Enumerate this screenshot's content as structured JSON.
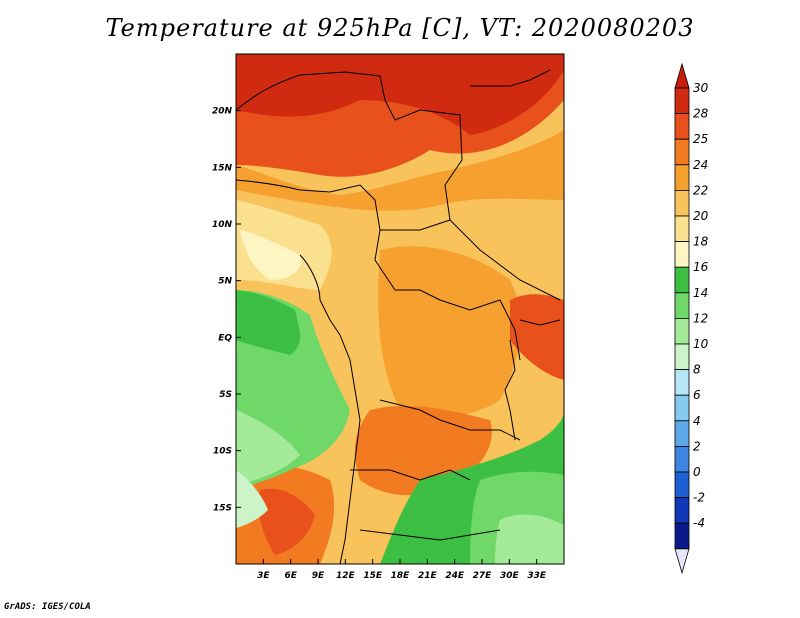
{
  "title": "Temperature at 925hPa [C], VT: 2020080203",
  "footer": "GrADS: IGES/COLA",
  "map": {
    "lon_range": [
      0,
      36
    ],
    "lat_range": [
      -20,
      25
    ],
    "x_ticks": [
      "3E",
      "6E",
      "9E",
      "12E",
      "15E",
      "18E",
      "21E",
      "24E",
      "27E",
      "30E",
      "33E"
    ],
    "x_tick_values": [
      3,
      6,
      9,
      12,
      15,
      18,
      21,
      24,
      27,
      30,
      33
    ],
    "y_ticks": [
      "20N",
      "15N",
      "10N",
      "5N",
      "EQ",
      "5S",
      "10S",
      "15S"
    ],
    "y_tick_values": [
      20,
      15,
      10,
      5,
      0,
      -5,
      -10,
      -15
    ]
  },
  "colorbar": {
    "labels": [
      "30",
      "28",
      "25",
      "24",
      "22",
      "20",
      "18",
      "16",
      "14",
      "12",
      "10",
      "8",
      "6",
      "4",
      "2",
      "0",
      "-2",
      "-4"
    ],
    "colors": [
      "#d02a10",
      "#e8501c",
      "#f27b22",
      "#f6a030",
      "#f9c35c",
      "#fbe08f",
      "#fef6c2",
      "#3cbf42",
      "#6fd869",
      "#a5ea98",
      "#cdf4c8",
      "#b7e6f7",
      "#86caef",
      "#5ea8ea",
      "#3e84e2",
      "#1f5fd4",
      "#1038b8",
      "#0a1a8a"
    ],
    "top_color": "#c81e0a",
    "bottom_color": "#e6e6fa"
  }
}
